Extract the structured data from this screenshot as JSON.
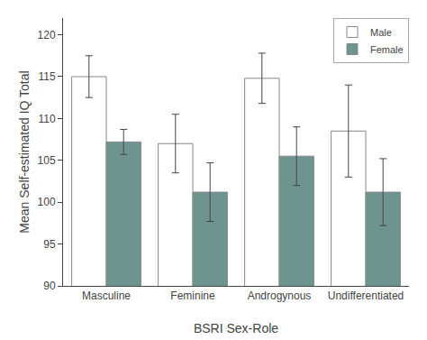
{
  "chart_data": {
    "type": "bar",
    "categories": [
      "Masculine",
      "Feminine",
      "Androgynous",
      "Undifferentiated"
    ],
    "series": [
      {
        "name": "Male",
        "color": "#ffffff",
        "values": [
          115.0,
          107.0,
          114.8,
          108.5
        ],
        "errors": [
          2.5,
          3.5,
          3.0,
          5.5
        ]
      },
      {
        "name": "Female",
        "color": "#6e9490",
        "values": [
          107.2,
          101.2,
          105.5,
          101.2
        ],
        "errors": [
          1.5,
          3.5,
          3.5,
          4.0
        ]
      }
    ],
    "xlabel": "BSRI Sex-Role",
    "ylabel": "Mean Self-estimated IQ Total",
    "ylim": [
      90,
      122
    ],
    "yticks": [
      90,
      95,
      100,
      105,
      110,
      115,
      120
    ],
    "grid": false,
    "legend": "upper right"
  }
}
